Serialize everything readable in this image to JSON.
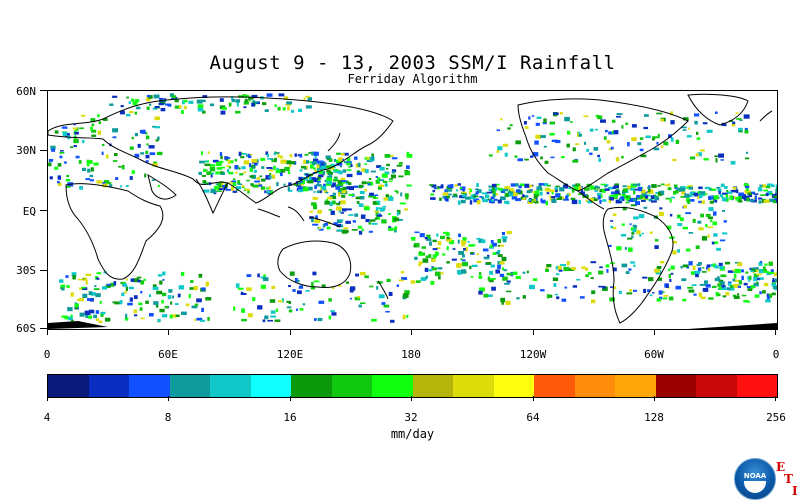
{
  "header": {
    "title": "August 9 - 13, 2003 SSM/I Rainfall",
    "subtitle": "Ferriday Algorithm"
  },
  "map": {
    "lat_labels": [
      "60N",
      "30N",
      "EQ",
      "30S",
      "60S"
    ],
    "lon_labels": [
      "0",
      "60E",
      "120E",
      "180",
      "120W",
      "60W",
      "0"
    ],
    "land_outline_color": "#000000",
    "ocean_color": "#ffffff",
    "ice_color": "#000000"
  },
  "colorbar": {
    "labels": [
      "4",
      "8",
      "16",
      "32",
      "64",
      "128",
      "256"
    ],
    "units": "mm/day",
    "colors": [
      "#0a1a7c",
      "#0a2fc0",
      "#1050ff",
      "#0f9a9c",
      "#10c8c8",
      "#10ffff",
      "#0a9a0a",
      "#10c810",
      "#10ff10",
      "#b4b40a",
      "#dcdc0a",
      "#ffff10",
      "#ff5a0a",
      "#ff8c0a",
      "#ffa60a",
      "#9a0000",
      "#c80a0a",
      "#ff1010"
    ]
  },
  "logo": {
    "text": "NOAA",
    "eti": [
      "E",
      "T",
      "I"
    ]
  }
}
